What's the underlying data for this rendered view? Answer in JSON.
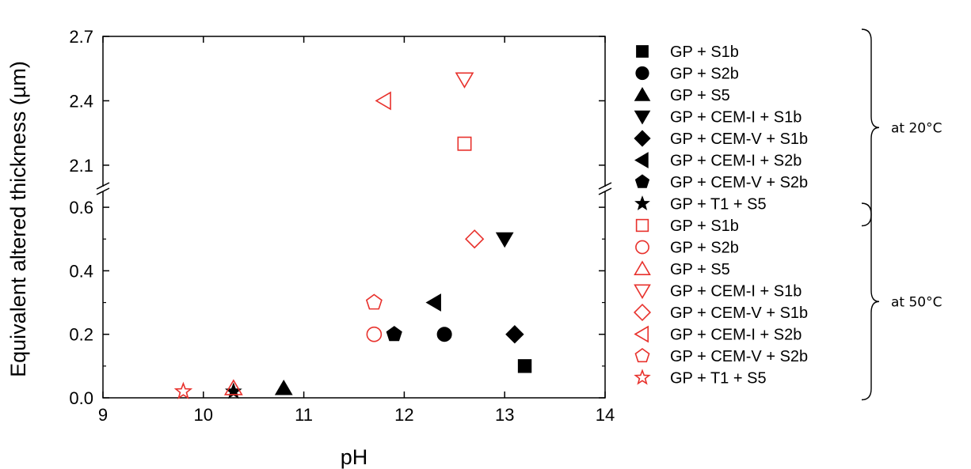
{
  "chart_data": {
    "type": "scatter",
    "xlabel": "pH",
    "ylabel": "Equivalent altered thickness (µm)",
    "xlim": [
      9,
      14
    ],
    "x_ticks": [
      "9",
      "10",
      "11",
      "12",
      "13",
      "14"
    ],
    "y_axis_break": {
      "lower_range": [
        0,
        0.65
      ],
      "upper_range": [
        2.0,
        2.7
      ]
    },
    "y_ticks_lower": [
      "0.0",
      "0.2",
      "0.4",
      "0.6"
    ],
    "y_ticks_upper": [
      "2.1",
      "2.4",
      "2.7"
    ],
    "legend_position": "right",
    "colors": {
      "20C": "#000000",
      "50C": "#e8312c"
    },
    "series": [
      {
        "name": "GP + S1b",
        "group": "20C",
        "marker": "square",
        "filled": true,
        "points": [
          {
            "x": 13.2,
            "y": 0.1
          }
        ]
      },
      {
        "name": "GP + S2b",
        "group": "20C",
        "marker": "circle",
        "filled": true,
        "points": [
          {
            "x": 12.4,
            "y": 0.2
          }
        ]
      },
      {
        "name": "GP + S5",
        "group": "20C",
        "marker": "triangle-up",
        "filled": true,
        "points": [
          {
            "x": 10.8,
            "y": 0.03
          }
        ]
      },
      {
        "name": "GP + CEM-I + S1b",
        "group": "20C",
        "marker": "triangle-down",
        "filled": true,
        "points": [
          {
            "x": 13.0,
            "y": 0.5
          }
        ]
      },
      {
        "name": "GP + CEM-V + S1b",
        "group": "20C",
        "marker": "diamond",
        "filled": true,
        "points": [
          {
            "x": 13.1,
            "y": 0.2
          }
        ]
      },
      {
        "name": "GP + CEM-I + S2b",
        "group": "20C",
        "marker": "triangle-left",
        "filled": true,
        "points": [
          {
            "x": 12.3,
            "y": 0.3
          }
        ]
      },
      {
        "name": "GP + CEM-V + S2b",
        "group": "20C",
        "marker": "pentagon",
        "filled": true,
        "points": [
          {
            "x": 11.9,
            "y": 0.2
          }
        ]
      },
      {
        "name": "GP + T1 + S5",
        "group": "20C",
        "marker": "star",
        "filled": true,
        "points": [
          {
            "x": 10.3,
            "y": 0.02
          }
        ]
      },
      {
        "name": "GP + S1b",
        "group": "50C",
        "marker": "square",
        "filled": false,
        "points": [
          {
            "x": 12.6,
            "y": 2.2
          }
        ]
      },
      {
        "name": "GP + S2b",
        "group": "50C",
        "marker": "circle",
        "filled": false,
        "points": [
          {
            "x": 11.7,
            "y": 0.2
          }
        ]
      },
      {
        "name": "GP + S5",
        "group": "50C",
        "marker": "triangle-up",
        "filled": false,
        "points": [
          {
            "x": 10.3,
            "y": 0.03
          }
        ]
      },
      {
        "name": "GP + CEM-I + S1b",
        "group": "50C",
        "marker": "triangle-down",
        "filled": false,
        "points": [
          {
            "x": 12.6,
            "y": 2.5
          }
        ]
      },
      {
        "name": "GP + CEM-V + S1b",
        "group": "50C",
        "marker": "diamond",
        "filled": false,
        "points": [
          {
            "x": 12.7,
            "y": 0.5
          }
        ]
      },
      {
        "name": "GP + CEM-I + S2b",
        "group": "50C",
        "marker": "triangle-left",
        "filled": false,
        "points": [
          {
            "x": 11.8,
            "y": 2.4
          }
        ]
      },
      {
        "name": "GP + CEM-V + S2b",
        "group": "50C",
        "marker": "pentagon",
        "filled": false,
        "points": [
          {
            "x": 11.7,
            "y": 0.3
          }
        ]
      },
      {
        "name": "GP + T1 + S5",
        "group": "50C",
        "marker": "star",
        "filled": false,
        "points": [
          {
            "x": 9.8,
            "y": 0.02
          }
        ]
      }
    ],
    "legend_groups": [
      {
        "label": "at 20°C",
        "series_from": 0,
        "series_to": 7
      },
      {
        "label": "at 50°C",
        "series_from": 8,
        "series_to": 15
      }
    ]
  }
}
